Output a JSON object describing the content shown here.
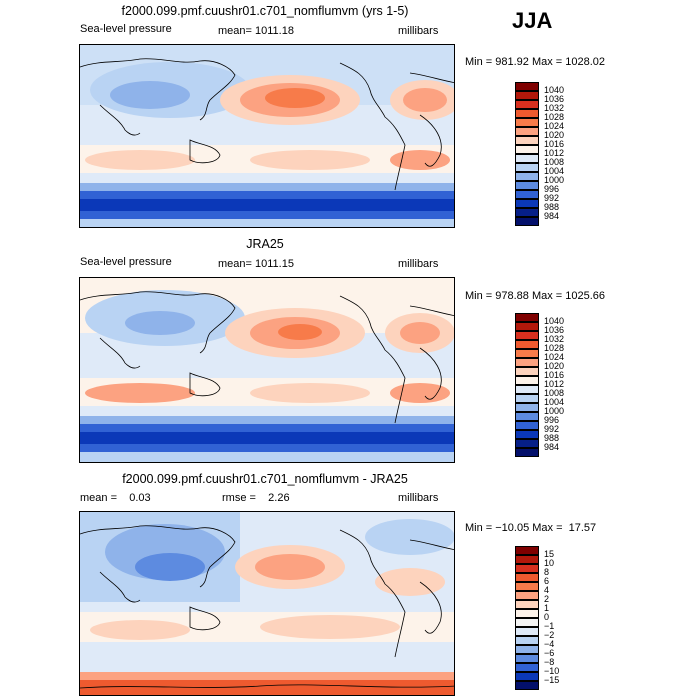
{
  "season": "JJA",
  "panels": [
    {
      "title": "f2000.099.pmf.cuushr01.c701_nomflumvm (yrs 1-5)",
      "variable": "Sea-level pressure",
      "mean_text": "mean= 1011.18",
      "units": "millibars",
      "stats": "Min = 981.92 Max = 1028.02",
      "colorbar_labels": [
        "1040",
        "1036",
        "1032",
        "1028",
        "1024",
        "1020",
        "1016",
        "1012",
        "1008",
        "1004",
        "1000",
        "996",
        "992",
        "988",
        "984"
      ]
    },
    {
      "title": "JRA25",
      "variable": "Sea-level pressure",
      "mean_text": "mean= 1011.15",
      "units": "millibars",
      "stats": "Min = 978.88 Max = 1025.66",
      "colorbar_labels": [
        "1040",
        "1036",
        "1032",
        "1028",
        "1024",
        "1020",
        "1016",
        "1012",
        "1008",
        "1004",
        "1000",
        "996",
        "992",
        "988",
        "984"
      ]
    },
    {
      "title": "f2000.099.pmf.cuushr01.c701_nomflumvm - JRA25",
      "mean_text": "mean =    0.03",
      "rmse_text": "rmse =    2.26",
      "units": "millibars",
      "stats": "Min = −10.05 Max =  17.57",
      "colorbar_labels": [
        "15",
        "10",
        "8",
        "6",
        "4",
        "2",
        "1",
        "0",
        "−1",
        "−2",
        "−4",
        "−6",
        "−8",
        "−10",
        "−15"
      ]
    }
  ],
  "colors": {
    "abs_scale": [
      "#7f0000",
      "#b2180b",
      "#d7301f",
      "#ee5a2f",
      "#f77b4a",
      "#fca281",
      "#fdd3bd",
      "#fdf3ea",
      "#dfeaf8",
      "#b9d3f3",
      "#8fb3ea",
      "#5d8be0",
      "#3162d4",
      "#0b38b8",
      "#061f88",
      "#03106b"
    ],
    "diff_scale": [
      "#7f0000",
      "#b2180b",
      "#d7301f",
      "#ee5a2f",
      "#f77b4a",
      "#fca281",
      "#fdd3bd",
      "#fdf3ea",
      "#f4f4f4",
      "#dfeaf8",
      "#b9d3f3",
      "#8fb3ea",
      "#5d8be0",
      "#3162d4",
      "#0b38b8",
      "#03106b"
    ]
  }
}
